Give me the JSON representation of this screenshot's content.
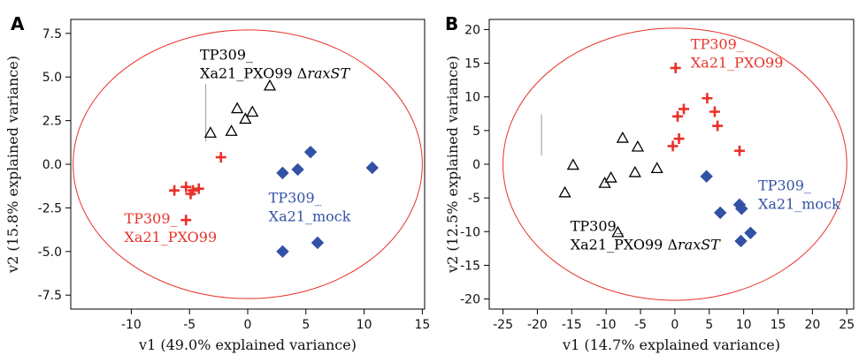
{
  "colors": {
    "red": "#e8332b",
    "blue": "#3352a6",
    "black": "#000000",
    "ellipse": "#e8332b",
    "frame": "#000000",
    "grid_marker": "#999999"
  },
  "chart_data": [
    {
      "panel_label": "A",
      "type": "scatter",
      "xlabel": "v1  (49.0% explained variance)",
      "ylabel": "v2  (15.8% explained variance)",
      "xlim": [
        -15.2,
        15.2
      ],
      "ylim": [
        -8.3,
        8.3
      ],
      "xticks": [
        -10,
        -5,
        0,
        5,
        10,
        15
      ],
      "yticks": [
        -7.5,
        -5.0,
        -2.5,
        0.0,
        2.5,
        5.0,
        7.5
      ],
      "ytick_labels": [
        "-7.5",
        "-5.0",
        "-2.5",
        "0.0",
        "2.5",
        "5.0",
        "7.5"
      ],
      "ellipse": {
        "cx": 0,
        "cy": 0,
        "rx": 15.0,
        "ry": 7.7
      },
      "series": [
        {
          "marker": "triangle",
          "color": "#000000",
          "points": [
            [
              -3.2,
              1.8
            ],
            [
              -1.4,
              1.9
            ],
            [
              -0.9,
              3.2
            ],
            [
              -0.2,
              2.6
            ],
            [
              0.4,
              3.0
            ],
            [
              1.9,
              4.5
            ]
          ]
        },
        {
          "marker": "star",
          "color": "#e8332b",
          "points": [
            [
              -6.3,
              -1.5
            ],
            [
              -5.3,
              -1.3
            ],
            [
              -4.7,
              -1.5
            ],
            [
              -4.2,
              -1.4
            ],
            [
              -4.9,
              -1.7
            ],
            [
              -2.3,
              0.4
            ],
            [
              -5.3,
              -3.2
            ]
          ]
        },
        {
          "marker": "diamond",
          "color": "#3352a6",
          "points": [
            [
              3.0,
              -0.5
            ],
            [
              4.3,
              -0.3
            ],
            [
              5.4,
              0.7
            ],
            [
              10.7,
              -0.2
            ],
            [
              6.0,
              -4.5
            ],
            [
              3.0,
              -5.0
            ]
          ]
        }
      ],
      "annotations": [
        {
          "lines": [
            "TP309_",
            "Xa21_PXO99 Δ"
          ],
          "italic_suffix": "raxST",
          "color": "#000000",
          "x": -4.1,
          "y": 6.0
        },
        {
          "lines": [
            "TP309_",
            "Xa21_PXO99"
          ],
          "color": "#e8332b",
          "x": -10.6,
          "y": -3.4
        },
        {
          "lines": [
            "TP309_",
            "Xa21_mock"
          ],
          "color": "#3352a6",
          "x": 1.8,
          "y": -2.2
        }
      ],
      "axis_crosshair": {
        "x": -3.6,
        "y_from": 1.3,
        "y_to": 4.6,
        "x_to": -3.6
      }
    },
    {
      "panel_label": "B",
      "type": "scatter",
      "xlabel": "v1  (14.7% explained variance)",
      "ylabel": "v2  (12.5% explained variance)",
      "xlim": [
        -27,
        26
      ],
      "ylim": [
        -21.5,
        21.5
      ],
      "xticks": [
        -25,
        -20,
        -15,
        -10,
        -5,
        0,
        5,
        10,
        15,
        20,
        25
      ],
      "yticks": [
        -20,
        -15,
        -10,
        -5,
        0,
        5,
        10,
        15,
        20
      ],
      "ytick_labels": [
        "-20",
        "-15",
        "-10",
        "-5",
        "0",
        "5",
        "10",
        "15",
        "20"
      ],
      "ellipse": {
        "cx": 0,
        "cy": 0,
        "rx": 25.0,
        "ry": 20.2
      },
      "series": [
        {
          "marker": "triangle",
          "color": "#000000",
          "points": [
            [
              -16.0,
              -4.2
            ],
            [
              -14.8,
              -0.1
            ],
            [
              -10.2,
              -2.8
            ],
            [
              -9.3,
              -2.0
            ],
            [
              -7.6,
              3.9
            ],
            [
              -5.4,
              2.6
            ],
            [
              -5.8,
              -1.2
            ],
            [
              -2.6,
              -0.6
            ],
            [
              -8.3,
              -10.1
            ]
          ]
        },
        {
          "marker": "star",
          "color": "#e8332b",
          "points": [
            [
              0.1,
              14.3
            ],
            [
              4.7,
              9.8
            ],
            [
              1.3,
              8.2
            ],
            [
              0.4,
              7.1
            ],
            [
              5.8,
              7.8
            ],
            [
              6.2,
              5.7
            ],
            [
              0.6,
              3.8
            ],
            [
              -0.3,
              2.7
            ],
            [
              9.4,
              2.0
            ]
          ]
        },
        {
          "marker": "diamond",
          "color": "#3352a6",
          "points": [
            [
              4.6,
              -1.8
            ],
            [
              6.6,
              -7.2
            ],
            [
              9.4,
              -6.0
            ],
            [
              9.7,
              -6.6
            ],
            [
              11.0,
              -10.2
            ],
            [
              9.6,
              -11.4
            ]
          ]
        }
      ],
      "annotations": [
        {
          "lines": [
            "TP309_",
            "Xa21_PXO99"
          ],
          "color": "#e8332b",
          "x": 2.3,
          "y": 17.1
        },
        {
          "lines": [
            "TP309_",
            "Xa21_mock"
          ],
          "color": "#3352a6",
          "x": 12.1,
          "y": -3.9
        },
        {
          "lines": [
            "TP309_",
            "Xa21_PXO99 Δ"
          ],
          "italic_suffix": "raxST",
          "color": "#000000",
          "x": -15.2,
          "y": -9.9
        }
      ],
      "axis_crosshair": {
        "x": -19.4,
        "y_from": 1.3,
        "y_to": 7.4,
        "x_to": -19.4
      }
    }
  ]
}
